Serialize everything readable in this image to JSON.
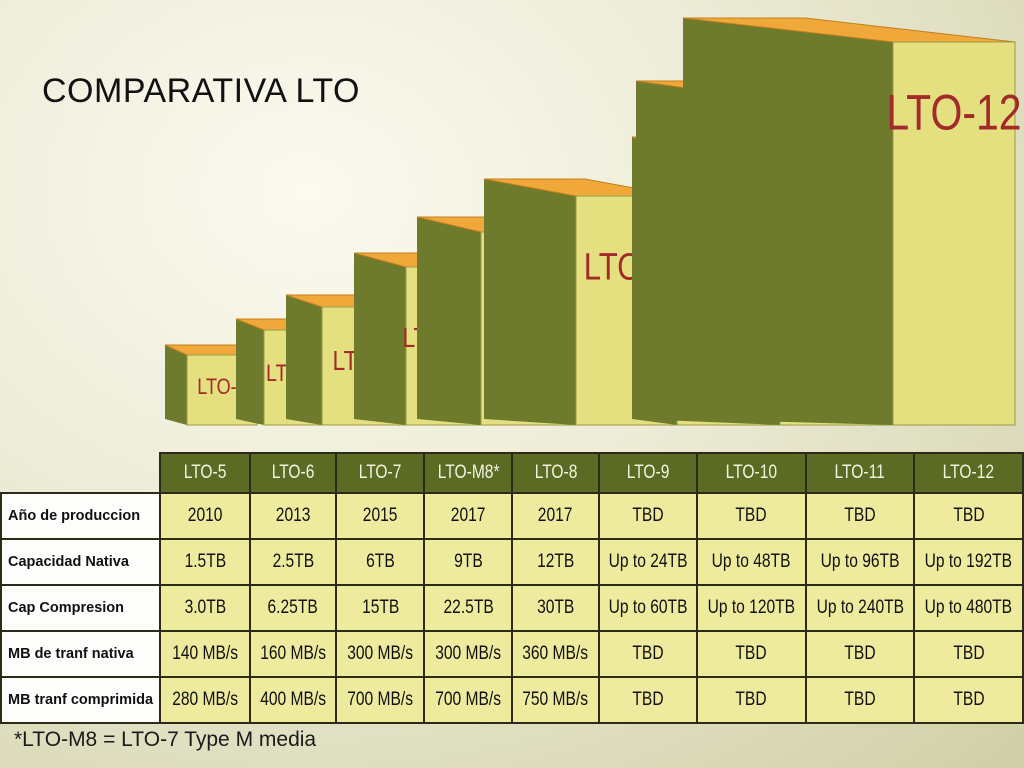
{
  "title": "COMPARATIVA LTO",
  "footnote": "*LTO-M8 = LTO-7 Type M media",
  "colors": {
    "box_front": "#e4e07f",
    "box_side": "#6e7a2c",
    "box_top": "#f0a83a",
    "box_label": "#a32a2a",
    "header_bg": "#5b6b24",
    "cell_bg": "#efeb9e"
  },
  "chart_data": {
    "type": "bar",
    "style": "3d-stepped-boxes",
    "categories": [
      "LTO-5",
      "LTO-6",
      "LTO-7",
      "LTO-M8",
      "LTO-8",
      "LTO-9",
      "LTO-10",
      "LTO-11",
      "LTO-12"
    ],
    "values": [
      1.5,
      2.5,
      6,
      9,
      12,
      24,
      48,
      96,
      192
    ],
    "ylabel": "",
    "xlabel": ""
  },
  "table": {
    "headers": [
      "LTO-5",
      "LTO-6",
      "LTO-7",
      "LTO-M8*",
      "LTO-8",
      "LTO-9",
      "LTO-10",
      "LTO-11",
      "LTO-12"
    ],
    "rows": [
      {
        "label": "Año de produccion",
        "values": [
          "2010",
          "2013",
          "2015",
          "2017",
          "2017",
          "TBD",
          "TBD",
          "TBD",
          "TBD"
        ]
      },
      {
        "label": "Capacidad Nativa",
        "values": [
          "1.5TB",
          "2.5TB",
          "6TB",
          "9TB",
          "12TB",
          "Up to 24TB",
          "Up to 48TB",
          "Up to 96TB",
          "Up to 192TB"
        ]
      },
      {
        "label": "Cap Compresion",
        "values": [
          "3.0TB",
          "6.25TB",
          "15TB",
          "22.5TB",
          "30TB",
          "Up to 60TB",
          "Up to 120TB",
          "Up to 240TB",
          "Up to 480TB"
        ]
      },
      {
        "label": "MB de tranf nativa",
        "values": [
          "140 MB/s",
          "160 MB/s",
          "300 MB/s",
          "300 MB/s",
          "360 MB/s",
          "TBD",
          "TBD",
          "TBD",
          "TBD"
        ]
      },
      {
        "label": "MB tranf comprimida",
        "values": [
          "280 MB/s",
          "400 MB/s",
          "700 MB/s",
          "700 MB/s",
          "750 MB/s",
          "TBD",
          "TBD",
          "TBD",
          "TBD"
        ]
      }
    ]
  }
}
